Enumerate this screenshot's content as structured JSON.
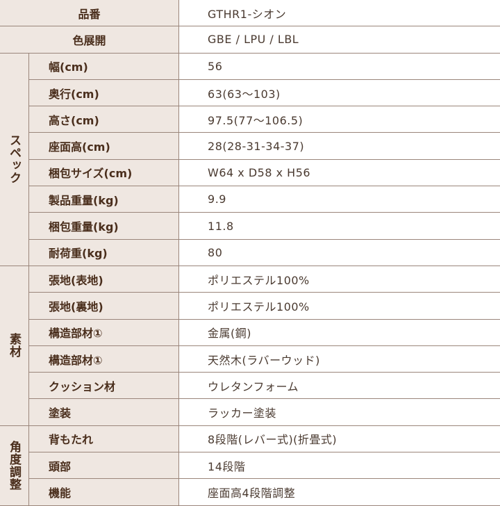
{
  "top_rows": [
    {
      "label": "品番",
      "value": "GTHR1-シオン"
    },
    {
      "label": "色展開",
      "value": "GBE / LPU / LBL"
    }
  ],
  "groups": [
    {
      "category": "スペック",
      "rows": [
        {
          "label": "幅(cm)",
          "value": "56"
        },
        {
          "label": "奥行(cm)",
          "value": "63(63〜103)"
        },
        {
          "label": "高さ(cm)",
          "value": "97.5(77〜106.5)"
        },
        {
          "label": "座面高(cm)",
          "value": "28(28-31-34-37)"
        },
        {
          "label": "梱包サイズ(cm)",
          "value": "W64 x D58 x H56"
        },
        {
          "label": "製品重量(kg)",
          "value": "9.9"
        },
        {
          "label": "梱包重量(kg)",
          "value": "11.8"
        },
        {
          "label": "耐荷重(kg)",
          "value": "80"
        }
      ]
    },
    {
      "category": "素材",
      "rows": [
        {
          "label": "張地(表地)",
          "value": "ポリエステル100%"
        },
        {
          "label": "張地(裏地)",
          "value": "ポリエステル100%"
        },
        {
          "label": "構造部材①",
          "value": "金属(鋼)"
        },
        {
          "label": "構造部材①",
          "value": "天然木(ラバーウッド)"
        },
        {
          "label": "クッション材",
          "value": "ウレタンフォーム"
        },
        {
          "label": "塗装",
          "value": "ラッカー塗装"
        }
      ]
    },
    {
      "category": "角度調整",
      "rows": [
        {
          "label": "背もたれ",
          "value": "8段階(レバー式)(折畳式)"
        },
        {
          "label": "頭部",
          "value": "14段階"
        },
        {
          "label": "機能",
          "value": "座面高4段階調整"
        }
      ]
    }
  ]
}
